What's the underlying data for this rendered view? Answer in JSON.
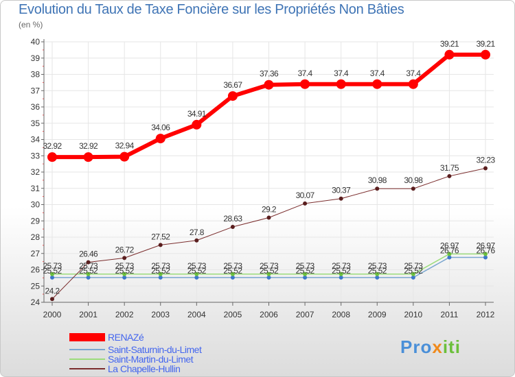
{
  "title": "Evolution du Taux de Taxe Foncière sur les Propriétés Non Bâties",
  "unit_label": "(en %)",
  "logo": {
    "part1": "Pro",
    "part2": "x",
    "part3": "iti"
  },
  "colors": {
    "title": "#3f74b5",
    "axis": "#666666",
    "grid": "#e6e6e6",
    "tick_red": "#ff4d4d",
    "legend_text": "#4466ee"
  },
  "chart_data": {
    "type": "line",
    "x": [
      "2000",
      "2001",
      "2002",
      "2003",
      "2004",
      "2005",
      "2006",
      "2007",
      "2008",
      "2009",
      "2010",
      "2011",
      "2012"
    ],
    "ylim": [
      24,
      40
    ],
    "yticks": [
      24,
      25,
      26,
      27,
      28,
      29,
      30,
      31,
      32,
      33,
      34,
      35,
      36,
      37,
      38,
      39,
      40
    ],
    "grid": true,
    "legend_placement": "bottom-left",
    "series": [
      {
        "name": "RENAZé",
        "color": "#ff0000",
        "values": [
          32.92,
          32.92,
          32.94,
          34.06,
          34.91,
          36.67,
          37.36,
          37.4,
          37.4,
          37.4,
          37.4,
          39.21,
          39.21
        ],
        "labels": [
          "32.92",
          "32.92",
          "32.94",
          "34.06",
          "34.91",
          "36.67",
          "37.36",
          "37.4",
          "37.4",
          "37.4",
          "37.4",
          "39.21",
          "39.21"
        ]
      },
      {
        "name": "Saint-Saturnin-du-Limet",
        "color": "#7aa6cf",
        "values": [
          25.52,
          25.52,
          25.52,
          25.52,
          25.52,
          25.52,
          25.52,
          25.52,
          25.52,
          25.52,
          25.52,
          26.76,
          26.76
        ],
        "labels": [
          "25.52",
          "25.52",
          "25.52",
          "25.52",
          "25.52",
          "25.52",
          "25.52",
          "25.52",
          "25.52",
          "25.52",
          "25.52",
          "26.76",
          "26.76"
        ]
      },
      {
        "name": "Saint-Martin-du-Limet",
        "color": "#9bdc7a",
        "values": [
          25.73,
          25.73,
          25.73,
          25.73,
          25.73,
          25.73,
          25.73,
          25.73,
          25.73,
          25.73,
          25.73,
          26.97,
          26.97
        ],
        "labels": [
          "25.73",
          "25.73",
          "25.73",
          "25.73",
          "25.73",
          "25.73",
          "25.73",
          "25.73",
          "25.73",
          "25.73",
          "25.73",
          "26.97",
          "26.97"
        ]
      },
      {
        "name": "La Chapelle-Hullin",
        "color": "#7a2c2c",
        "values": [
          24.2,
          26.46,
          26.72,
          27.52,
          27.8,
          28.63,
          29.2,
          30.07,
          30.37,
          30.98,
          30.98,
          31.75,
          32.23
        ],
        "labels": [
          "24.2",
          "26.46",
          "26.72",
          "27.52",
          "27.8",
          "28.63",
          "29.2",
          "30.07",
          "30.37",
          "30.98",
          "30.98",
          "31.75",
          "32.23"
        ]
      }
    ]
  }
}
